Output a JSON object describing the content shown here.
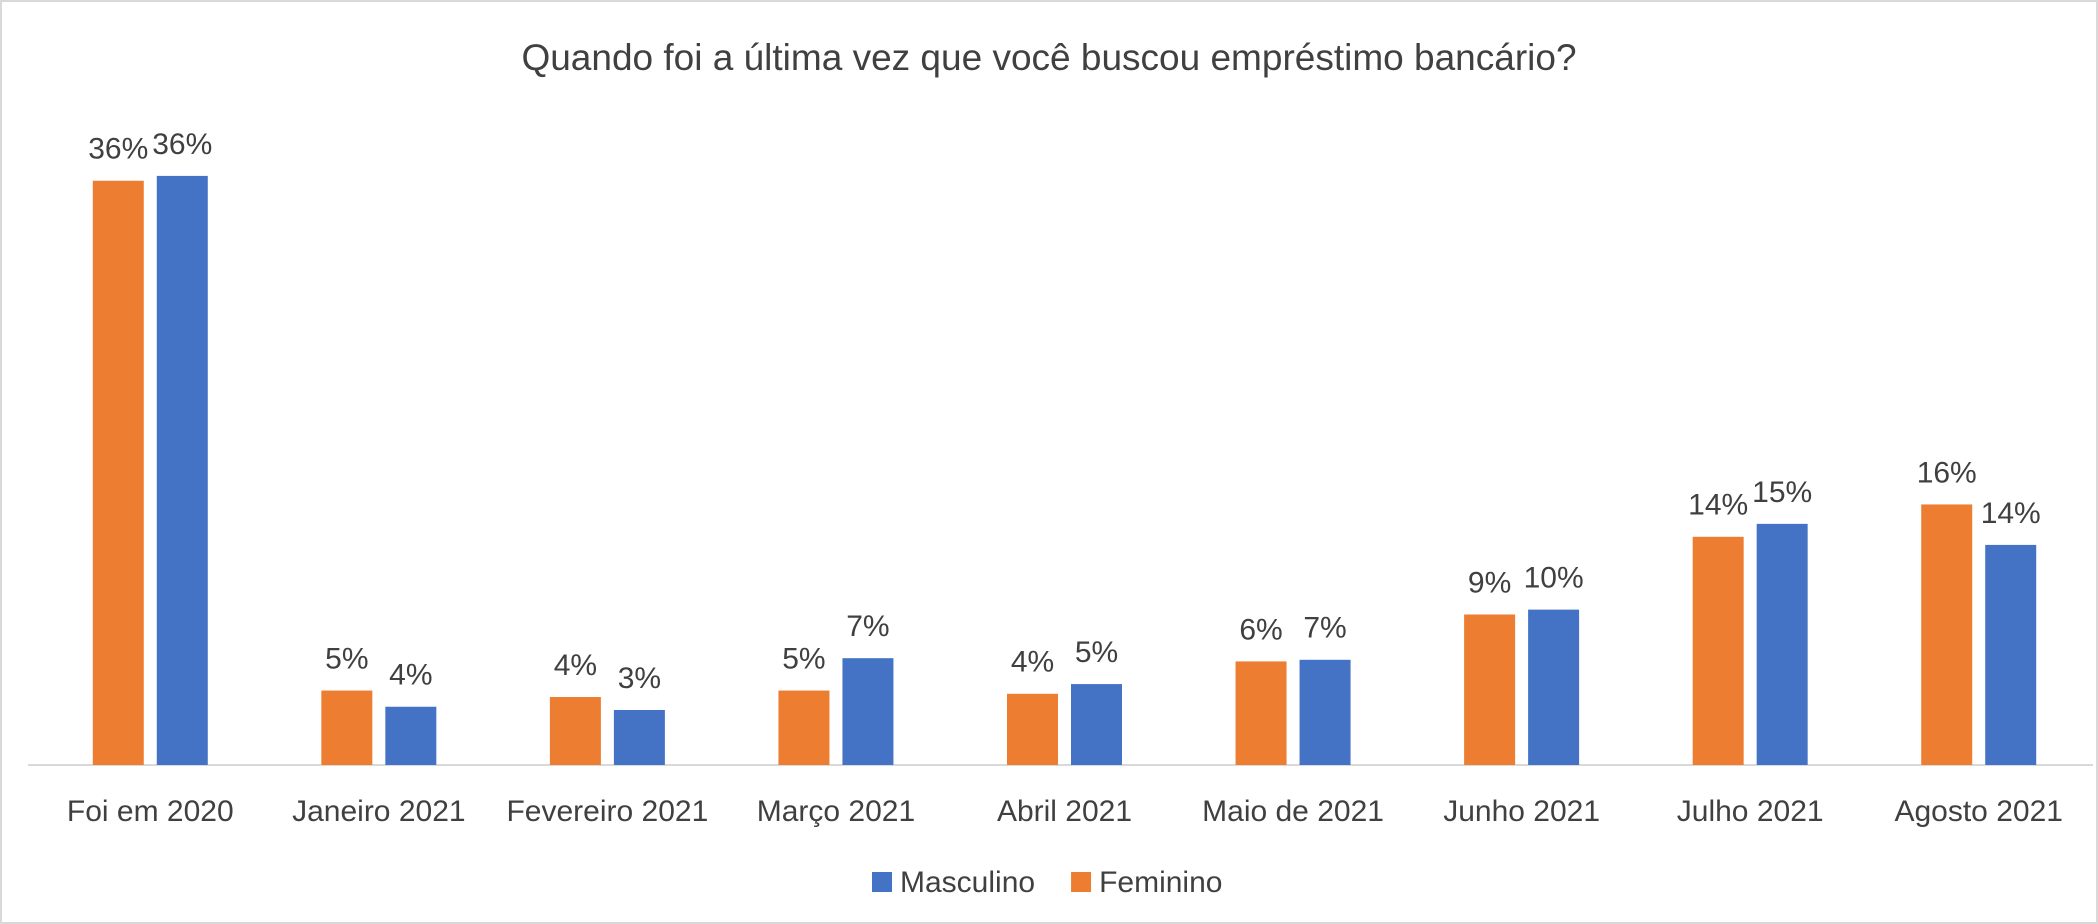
{
  "chart_data": {
    "type": "bar",
    "title": "Quando foi a última vez que você buscou empréstimo bancário?",
    "categories": [
      "Foi em 2020",
      "Janeiro 2021",
      "Fevereiro 2021",
      "Março 2021",
      "Abril 2021",
      "Maio de 2021",
      "Junho 2021",
      "Julho 2021",
      "Agosto 2021"
    ],
    "series": [
      {
        "name": "Feminino",
        "color": "#ed7d31",
        "values": [
          36.1,
          4.6,
          4.2,
          4.6,
          4.4,
          6.4,
          9.3,
          14.1,
          16.1
        ],
        "value_labels": [
          "36%",
          "5%",
          "4%",
          "5%",
          "4%",
          "6%",
          "9%",
          "14%",
          "16%"
        ]
      },
      {
        "name": "Masculino",
        "color": "#4472c4",
        "values": [
          36.4,
          3.6,
          3.4,
          6.6,
          5.0,
          6.5,
          9.6,
          14.9,
          13.6
        ],
        "value_labels": [
          "36%",
          "4%",
          "3%",
          "7%",
          "5%",
          "7%",
          "10%",
          "15%",
          "14%"
        ]
      }
    ],
    "ylim": [
      0,
      38
    ]
  }
}
